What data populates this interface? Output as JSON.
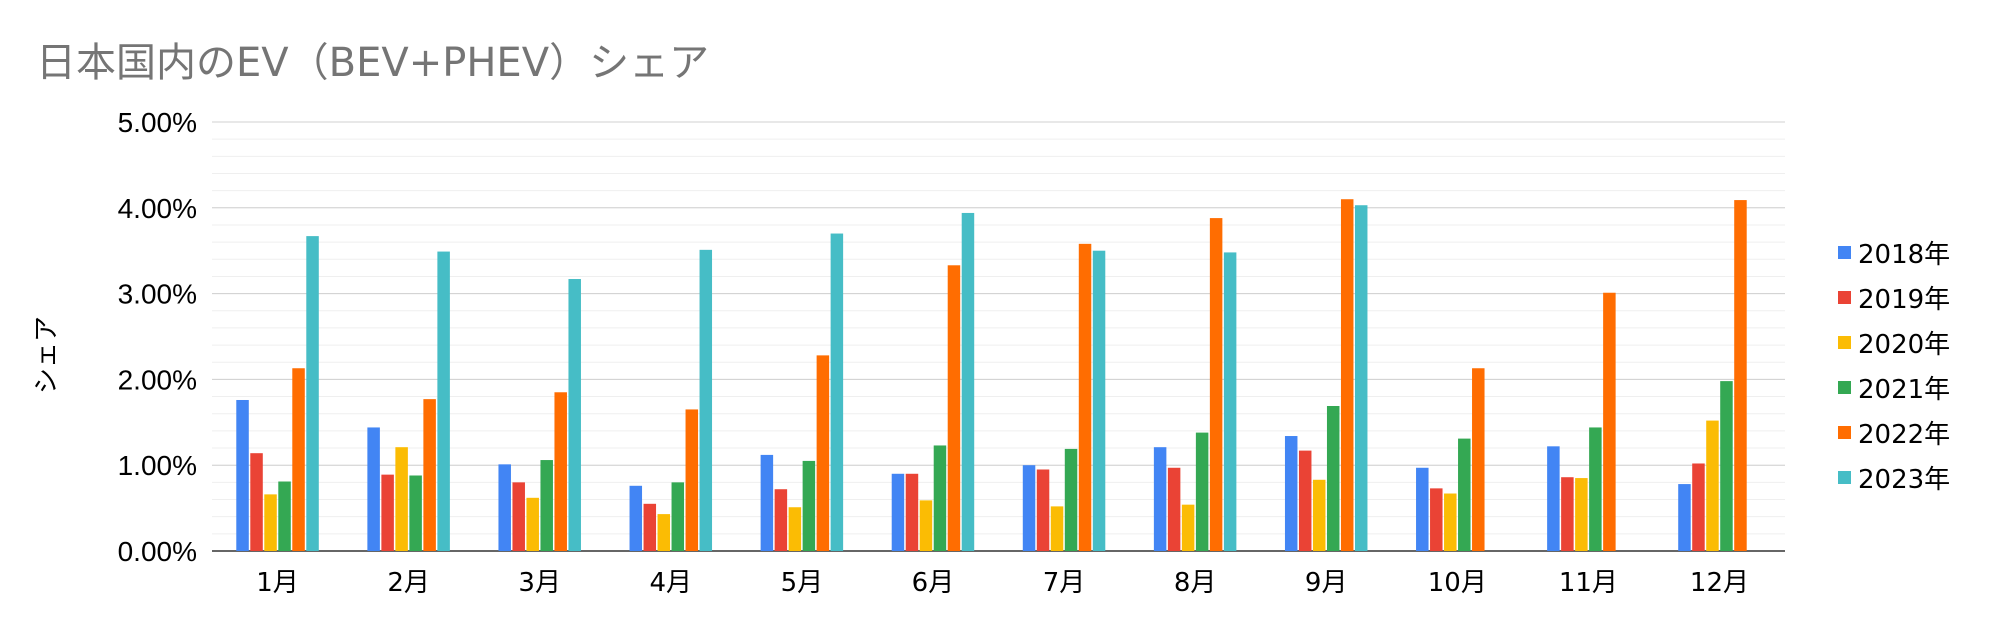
{
  "title": "日本国内のEV（BEV+PHEV）シェア",
  "chart_data": {
    "type": "bar",
    "title": "日本国内のEV（BEV+PHEV）シェア",
    "xlabel": "",
    "ylabel": "シェア",
    "ylim": [
      0,
      0.05
    ],
    "yticks": [
      "0.00%",
      "1.00%",
      "2.00%",
      "3.00%",
      "4.00%",
      "5.00%"
    ],
    "legend_position": "right",
    "grid": true,
    "categories": [
      "1月",
      "2月",
      "3月",
      "4月",
      "5月",
      "6月",
      "7月",
      "8月",
      "9月",
      "10月",
      "11月",
      "12月"
    ],
    "series": [
      {
        "name": "2018年",
        "color": "#4285F4",
        "values": [
          0.0176,
          0.0144,
          0.0101,
          0.0076,
          0.0112,
          0.009,
          0.01,
          0.0121,
          0.0134,
          0.0097,
          0.0122,
          0.0078
        ]
      },
      {
        "name": "2019年",
        "color": "#EA4335",
        "values": [
          0.0114,
          0.0089,
          0.008,
          0.0055,
          0.0072,
          0.009,
          0.0095,
          0.0097,
          0.0117,
          0.0073,
          0.0086,
          0.0102
        ]
      },
      {
        "name": "2020年",
        "color": "#FBBC04",
        "values": [
          0.0066,
          0.0121,
          0.0062,
          0.0043,
          0.0051,
          0.0059,
          0.0052,
          0.0054,
          0.0083,
          0.0067,
          0.0085,
          0.0152
        ]
      },
      {
        "name": "2021年",
        "color": "#34A853",
        "values": [
          0.0081,
          0.0088,
          0.0106,
          0.008,
          0.0105,
          0.0123,
          0.0119,
          0.0138,
          0.0169,
          0.0131,
          0.0144,
          0.0198
        ]
      },
      {
        "name": "2022年",
        "color": "#FF6D01",
        "values": [
          0.0213,
          0.0177,
          0.0185,
          0.0165,
          0.0228,
          0.0333,
          0.0358,
          0.0388,
          0.041,
          0.0213,
          0.0301,
          0.0409
        ]
      },
      {
        "name": "2023年",
        "color": "#46BDC6",
        "values": [
          0.0367,
          0.0349,
          0.0317,
          0.0351,
          0.037,
          0.0394,
          0.035,
          0.0348,
          0.0403,
          null,
          null,
          null
        ]
      }
    ]
  }
}
